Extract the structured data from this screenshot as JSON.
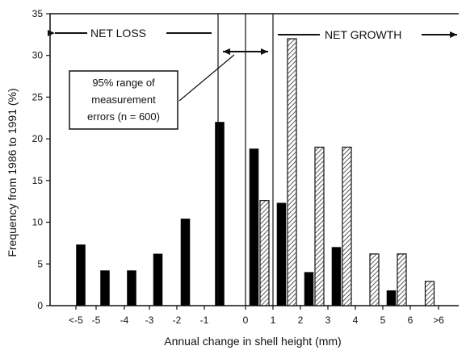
{
  "chart_data": {
    "type": "bar",
    "xlabel": "Annual change in shell height (mm)",
    "ylabel": "Frequency from 1986 to 1991 (%)",
    "ylim": [
      0,
      35
    ],
    "yticks": [
      "0",
      "5",
      "10",
      "15",
      "20",
      "25",
      "30",
      "35"
    ],
    "xtick_labels": [
      "<-5",
      "-5",
      "-4",
      "-3",
      "-2",
      "-1",
      "0",
      "1",
      "2",
      "3",
      "4",
      "5",
      "6",
      ">6"
    ],
    "grid": false,
    "series": [
      {
        "style": "solid",
        "color": "#000000",
        "bars": [
          {
            "bin": "<-5",
            "value": 7.3
          },
          {
            "bin": "-5",
            "value": 4.2
          },
          {
            "bin": "-4",
            "value": 4.2
          },
          {
            "bin": "-3",
            "value": 6.2
          },
          {
            "bin": "-2",
            "value": 10.4
          },
          {
            "bin": "-1",
            "value": 22.0
          },
          {
            "bin": "0",
            "value": 18.8
          },
          {
            "bin": "1",
            "value": 12.3
          },
          {
            "bin": "2",
            "value": 4.0
          },
          {
            "bin": "3",
            "value": 7.0
          },
          {
            "bin": "5",
            "value": 1.8
          }
        ]
      },
      {
        "style": "hatched",
        "color": "#888888",
        "bars": [
          {
            "bin": "0",
            "value": 12.6
          },
          {
            "bin": "1",
            "value": 32.0
          },
          {
            "bin": "2",
            "value": 19.0
          },
          {
            "bin": "3",
            "value": 19.0
          },
          {
            "bin": "4",
            "value": 6.2
          },
          {
            "bin": "5",
            "value": 6.2
          },
          {
            "bin": "6",
            "value": 2.9
          }
        ]
      }
    ],
    "annotations": {
      "net_loss": "NET LOSS",
      "net_growth": "NET GROWTH",
      "measurement_box": [
        "95% range of",
        "measurement",
        "errors (n = 600)"
      ]
    }
  }
}
